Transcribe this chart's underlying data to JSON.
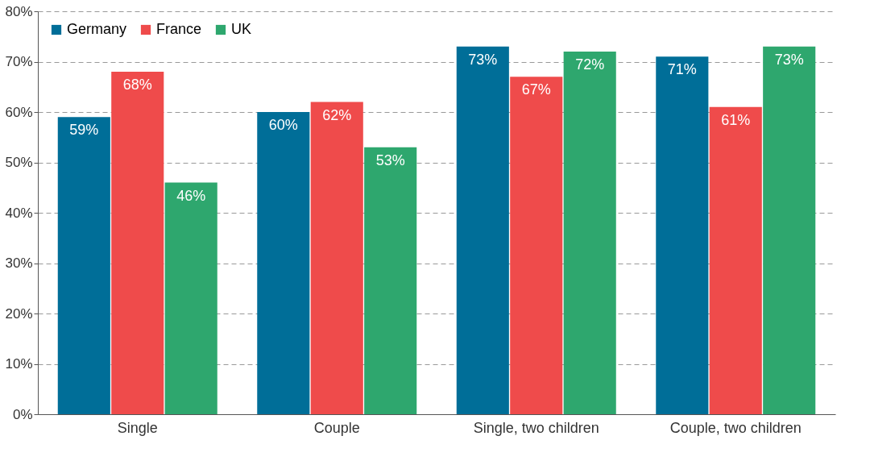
{
  "chart_data": {
    "type": "bar",
    "categories": [
      "Single",
      "Couple",
      "Single, two children",
      "Couple, two children"
    ],
    "series": [
      {
        "name": "Germany",
        "color": "#006e98",
        "values": [
          59,
          60,
          73,
          71
        ],
        "value_labels": [
          "59%",
          "60%",
          "73%",
          "71%"
        ]
      },
      {
        "name": "France",
        "color": "#ef4b4b",
        "values": [
          68,
          62,
          67,
          61
        ],
        "value_labels": [
          "68%",
          "62%",
          "67%",
          "61%"
        ]
      },
      {
        "name": "UK",
        "color": "#2ea76e",
        "values": [
          46,
          53,
          72,
          73
        ],
        "value_labels": [
          "46%",
          "53%",
          "72%",
          "73%"
        ]
      }
    ],
    "ylim": [
      0,
      80
    ],
    "yticks": [
      {
        "value": 0,
        "label": "0%"
      },
      {
        "value": 10,
        "label": "10%"
      },
      {
        "value": 20,
        "label": "20%"
      },
      {
        "value": 30,
        "label": "30%"
      },
      {
        "value": 40,
        "label": "40%"
      },
      {
        "value": 50,
        "label": "50%"
      },
      {
        "value": 60,
        "label": "60%"
      },
      {
        "value": 70,
        "label": "70%"
      },
      {
        "value": 80,
        "label": "80%"
      }
    ],
    "grid": "y",
    "line_style": "dashed",
    "legend": "top left"
  }
}
